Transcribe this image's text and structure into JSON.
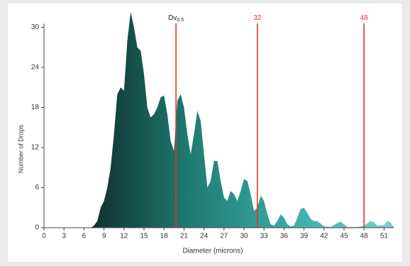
{
  "chart_data": {
    "type": "area",
    "xlabel": "Diameter (microns)",
    "ylabel": "Number of Drops",
    "x": [
      7,
      7.5,
      8,
      8.5,
      9,
      9.5,
      10,
      10.5,
      11,
      11.5,
      12,
      12.5,
      13,
      13.5,
      14,
      14.5,
      15,
      15.5,
      16,
      16.5,
      17,
      17.5,
      18,
      18.5,
      19,
      19.5,
      20,
      20.5,
      21,
      21.5,
      22,
      22.5,
      23,
      23.5,
      24,
      24.5,
      25,
      25.5,
      26,
      26.5,
      27,
      27.5,
      28,
      28.5,
      29,
      29.5,
      30,
      30.5,
      31,
      31.5,
      32,
      32.5,
      33,
      33.5,
      34,
      34.5,
      35,
      35.5,
      36,
      36.5,
      37,
      37.5,
      38,
      38.5,
      39,
      39.5,
      40,
      40.5,
      41,
      41.5,
      42,
      43,
      44,
      44.5,
      45,
      45.5,
      47,
      48,
      49,
      49.5,
      50,
      51,
      51.5,
      52,
      52.5
    ],
    "values": [
      0,
      0.3,
      1,
      3,
      4,
      6,
      9,
      14,
      20,
      21,
      20.5,
      28,
      32.3,
      30,
      27,
      26.5,
      23,
      18,
      16.5,
      17,
      18,
      19.5,
      19.8,
      17,
      13,
      11.5,
      19,
      20,
      18,
      14,
      11,
      14,
      17.5,
      16,
      11,
      6,
      7,
      10,
      10,
      7,
      4.5,
      4,
      5.5,
      5,
      4,
      5.5,
      7.3,
      7,
      5,
      2.5,
      3,
      4.8,
      4,
      2,
      0.5,
      0.3,
      1,
      2,
      1.5,
      0.5,
      0.2,
      0.3,
      1.5,
      2.8,
      3,
      2.2,
      1.3,
      1,
      1,
      0.6,
      0.2,
      0.1,
      0.7,
      0.9,
      0.5,
      0.1,
      0.1,
      0.3,
      1,
      0.8,
      0.3,
      0.4,
      1,
      0.8,
      0
    ],
    "gradient": [
      "#0e2b28",
      "#1e7a72",
      "#3aaca4",
      "#7ad3cf"
    ],
    "xlim": [
      0,
      52.5
    ],
    "ylim": [
      0,
      32.5
    ],
    "xticks": [
      0,
      3,
      6,
      9,
      12,
      15,
      18,
      21,
      24,
      27,
      30,
      33,
      36,
      39,
      42,
      45,
      48,
      51
    ],
    "yticks": [
      0,
      6,
      12,
      18,
      24,
      30
    ],
    "reference_lines": [
      {
        "label": "Dv",
        "sub": "0.5",
        "value": 19.8,
        "color": "#e0352b",
        "label_color": "#222222"
      },
      {
        "label": "32",
        "value": 32,
        "color": "#e0352b",
        "label_color": "#e0352b"
      },
      {
        "label": "48",
        "value": 48,
        "color": "#e0352b",
        "label_color": "#e0352b"
      }
    ]
  }
}
